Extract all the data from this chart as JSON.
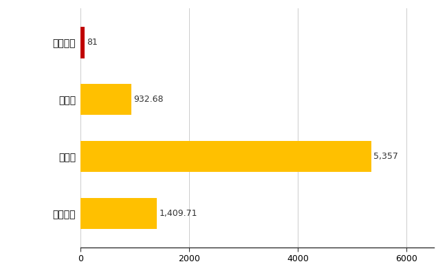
{
  "categories": [
    "東成瀬村",
    "県平均",
    "県最大",
    "全国平均"
  ],
  "values": [
    81,
    932.68,
    5357,
    1409.71
  ],
  "colors": [
    "#C00000",
    "#FFC000",
    "#FFC000",
    "#FFC000"
  ],
  "labels": [
    "81",
    "932.68",
    "5,357",
    "1,409.71"
  ],
  "xlim": [
    0,
    6500
  ],
  "xticks": [
    0,
    2000,
    4000,
    6000
  ],
  "background_color": "#FFFFFF",
  "grid_color": "#CCCCCC",
  "bar_height": 0.55
}
